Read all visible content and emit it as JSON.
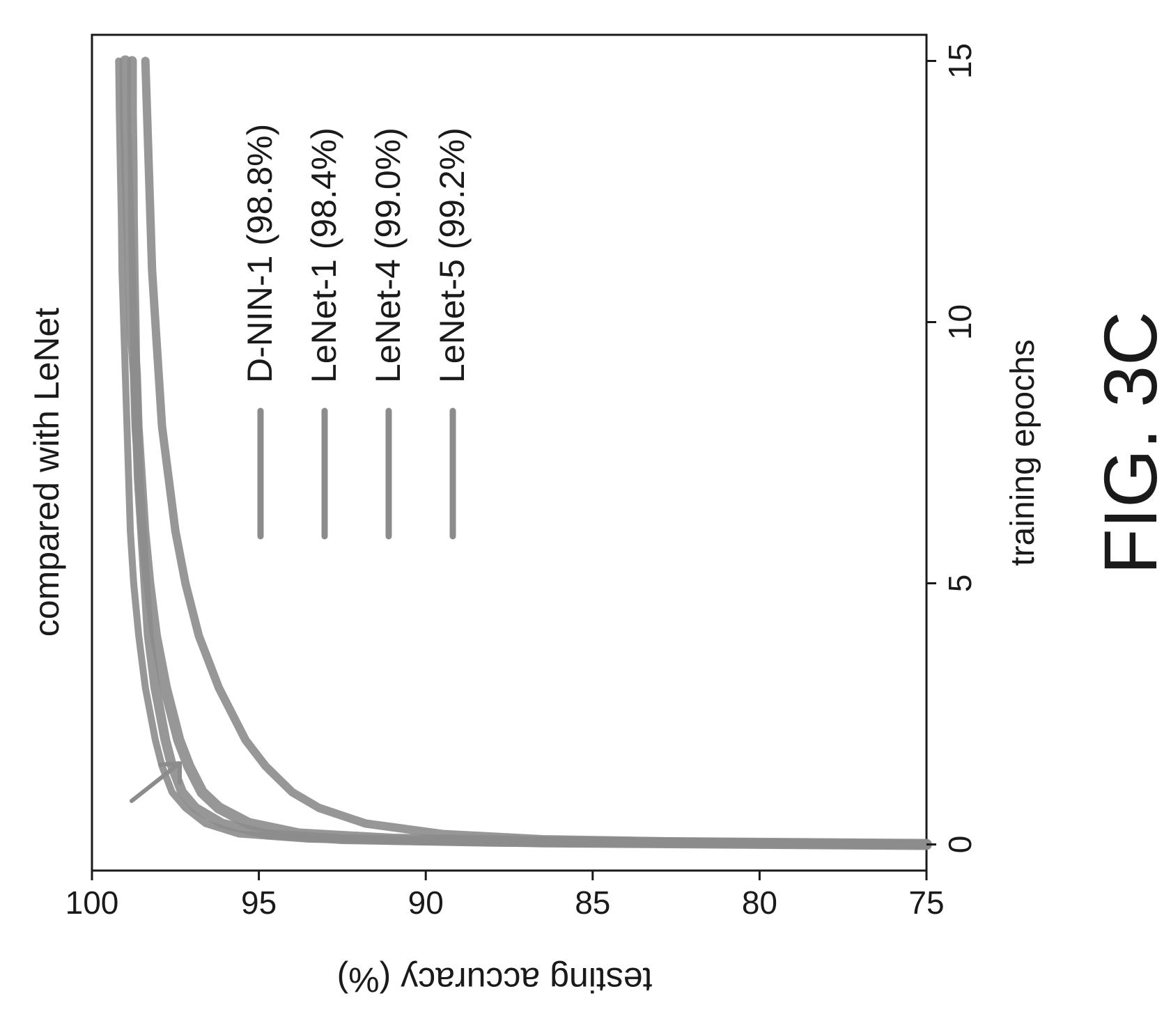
{
  "figure_label": "FIG. 3C",
  "chart_data": {
    "type": "line",
    "title": "compared with LeNet",
    "xlabel": "training epochs",
    "ylabel": "testing accuracy (%)",
    "xlim": [
      -0.5,
      15.5
    ],
    "ylim": [
      75,
      100
    ],
    "x_ticks": [
      0,
      5,
      10,
      15
    ],
    "y_ticks": [
      75,
      80,
      85,
      90,
      95,
      100
    ],
    "grid": false,
    "legend_position": "top-right",
    "series": [
      {
        "name": "D-NIN-1 (98.8%)",
        "points": [
          [
            0,
            75.0
          ],
          [
            0.05,
            88.0
          ],
          [
            0.1,
            92.5
          ],
          [
            0.2,
            94.8
          ],
          [
            0.4,
            96.1
          ],
          [
            0.7,
            96.9
          ],
          [
            1.0,
            97.3
          ],
          [
            1.5,
            97.6
          ],
          [
            2,
            97.8
          ],
          [
            3,
            98.1
          ],
          [
            4,
            98.3
          ],
          [
            5,
            98.4
          ],
          [
            6,
            98.5
          ],
          [
            7,
            98.6
          ],
          [
            8,
            98.65
          ],
          [
            9,
            98.7
          ],
          [
            10,
            98.72
          ],
          [
            11,
            98.75
          ],
          [
            12,
            98.77
          ],
          [
            13,
            98.78
          ],
          [
            14,
            98.8
          ],
          [
            15,
            98.8
          ]
        ]
      },
      {
        "name": "LeNet-1 (98.4%)",
        "points": [
          [
            0,
            75.0
          ],
          [
            0.05,
            82.0
          ],
          [
            0.1,
            86.5
          ],
          [
            0.2,
            89.5
          ],
          [
            0.4,
            91.8
          ],
          [
            0.7,
            93.2
          ],
          [
            1.0,
            94.0
          ],
          [
            1.5,
            94.8
          ],
          [
            2,
            95.4
          ],
          [
            3,
            96.2
          ],
          [
            4,
            96.8
          ],
          [
            5,
            97.2
          ],
          [
            6,
            97.5
          ],
          [
            7,
            97.7
          ],
          [
            8,
            97.9
          ],
          [
            9,
            98.0
          ],
          [
            10,
            98.1
          ],
          [
            11,
            98.2
          ],
          [
            12,
            98.25
          ],
          [
            13,
            98.3
          ],
          [
            14,
            98.35
          ],
          [
            15,
            98.4
          ]
        ]
      },
      {
        "name": "LeNet-4 (99.0%)",
        "points": [
          [
            0,
            75.0
          ],
          [
            0.05,
            86.5
          ],
          [
            0.1,
            91.0
          ],
          [
            0.2,
            93.8
          ],
          [
            0.4,
            95.3
          ],
          [
            0.7,
            96.2
          ],
          [
            1.0,
            96.7
          ],
          [
            1.5,
            97.1
          ],
          [
            2,
            97.4
          ],
          [
            3,
            97.8
          ],
          [
            4,
            98.1
          ],
          [
            5,
            98.3
          ],
          [
            6,
            98.45
          ],
          [
            7,
            98.55
          ],
          [
            8,
            98.65
          ],
          [
            9,
            98.7
          ],
          [
            10,
            98.8
          ],
          [
            11,
            98.85
          ],
          [
            12,
            98.9
          ],
          [
            13,
            98.95
          ],
          [
            14,
            99.0
          ],
          [
            15,
            99.0
          ]
        ]
      },
      {
        "name": "LeNet-5 (99.2%)",
        "points": [
          [
            0,
            75.0
          ],
          [
            0.05,
            89.5
          ],
          [
            0.1,
            93.5
          ],
          [
            0.2,
            95.6
          ],
          [
            0.4,
            96.6
          ],
          [
            0.7,
            97.2
          ],
          [
            1.0,
            97.6
          ],
          [
            1.5,
            97.9
          ],
          [
            2,
            98.1
          ],
          [
            3,
            98.4
          ],
          [
            4,
            98.6
          ],
          [
            5,
            98.75
          ],
          [
            6,
            98.85
          ],
          [
            7,
            98.9
          ],
          [
            8,
            98.95
          ],
          [
            9,
            99.0
          ],
          [
            10,
            99.05
          ],
          [
            11,
            99.1
          ],
          [
            12,
            99.12
          ],
          [
            13,
            99.15
          ],
          [
            14,
            99.18
          ],
          [
            15,
            99.2
          ]
        ]
      }
    ],
    "colors": {
      "line": "#8c8c8c",
      "ink": "#1a1a1a"
    }
  }
}
